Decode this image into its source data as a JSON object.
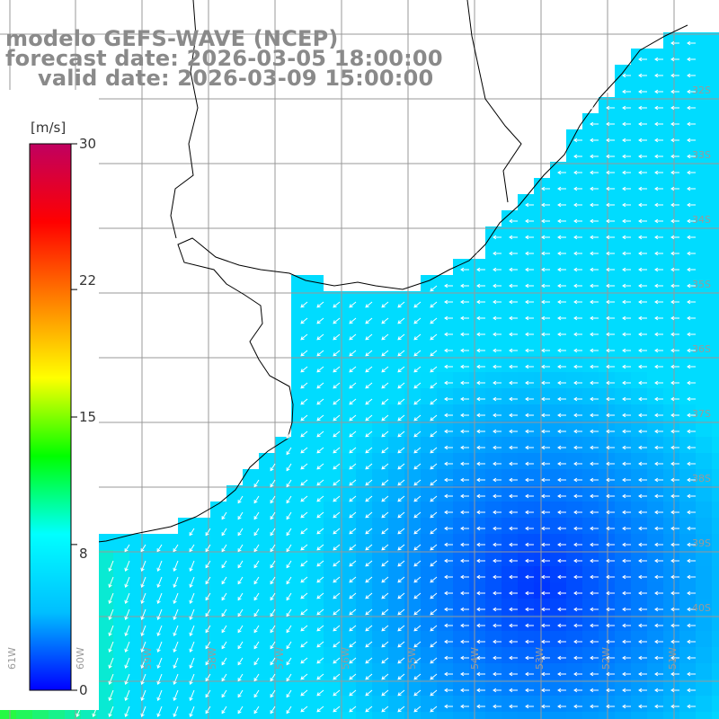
{
  "title": {
    "line1": "modelo GEFS-WAVE (NCEP)",
    "line2": "forecast date: 2026-03-05 18:00:00",
    "line3": "valid date: 2026-03-09 15:00:00"
  },
  "colorbar": {
    "unit": "[m/s]",
    "ticks": [
      {
        "label": "30",
        "value": 30
      },
      {
        "label": "22",
        "value": 22
      },
      {
        "label": "15",
        "value": 15
      },
      {
        "label": "8",
        "value": 8
      },
      {
        "label": "0",
        "value": 0
      }
    ],
    "colors": [
      "#0000ff",
      "#00bfff",
      "#00ffff",
      "#00ff00",
      "#ffff00",
      "#ff8000",
      "#ff0000",
      "#c00060"
    ]
  },
  "lat_labels": [
    "32S",
    "33S",
    "34S",
    "35S",
    "36S",
    "37S",
    "38S",
    "39S",
    "40S"
  ],
  "lon_labels": [
    "61W",
    "60W",
    "59W",
    "58W",
    "57W",
    "56W",
    "55W",
    "54W",
    "53W",
    "52W",
    "51W"
  ],
  "colors": {
    "land": "#ffffff",
    "grid": "#999999",
    "coast": "#000000",
    "arrow": "#ffffff"
  }
}
